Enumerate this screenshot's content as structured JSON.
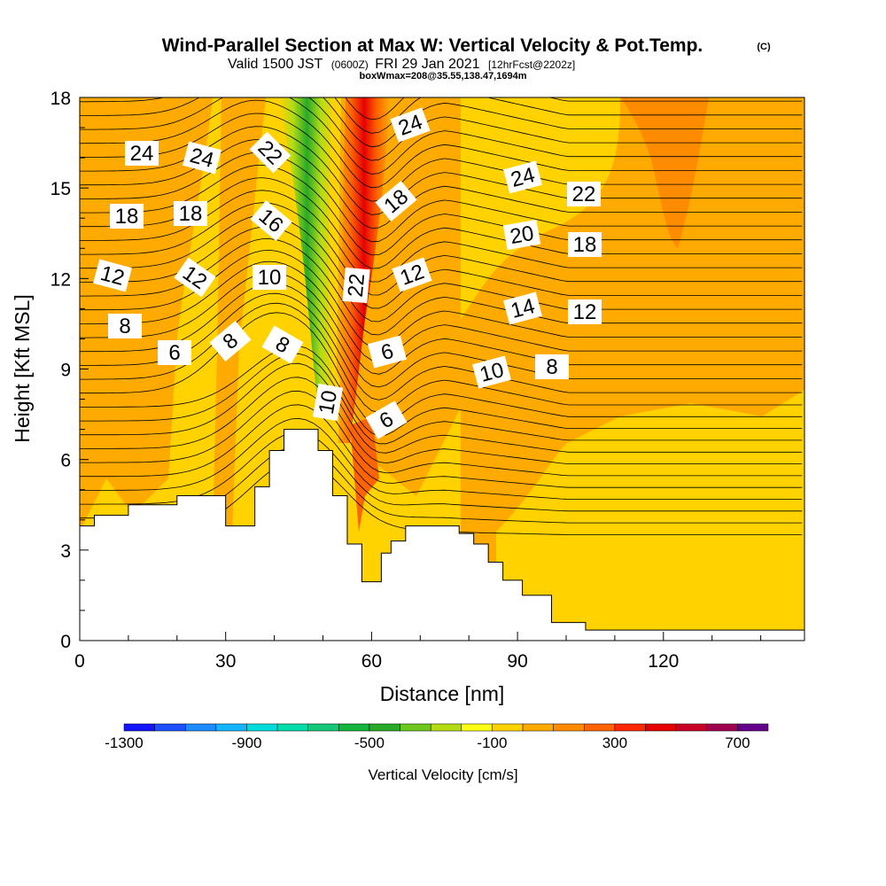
{
  "figure": {
    "title": "Wind-Parallel Section at Max W: Vertical Velocity & Pot.Temp.",
    "title_mark": "(C)",
    "valid_prefix": "Valid 1500 JST",
    "valid_utc": "(0600Z)",
    "valid_date": "FRI 29 Jan 2021",
    "forecast_tag": "[12hrFcst@2202z]",
    "box_info": "boxWmax=208@35.55,138.47,1694m"
  },
  "chart_data": {
    "type": "contour",
    "xlabel": "Distance [nm]",
    "ylabel": "Height [Kft MSL]",
    "xlim": [
      0,
      149
    ],
    "ylim": [
      0,
      18
    ],
    "xticks": [
      0,
      30,
      60,
      90,
      120
    ],
    "yticks": [
      0,
      3,
      6,
      9,
      12,
      15,
      18
    ],
    "colorbar": {
      "label": "Vertical Velocity [cm/s]",
      "tick_labels": [
        "-1300",
        "-900",
        "-500",
        "-100",
        "300",
        "700"
      ],
      "tick_values": [
        -1300,
        -900,
        -500,
        -100,
        300,
        700
      ],
      "levels": [
        -1300,
        -1200,
        -1100,
        -1000,
        -900,
        -800,
        -700,
        -600,
        -500,
        -400,
        -300,
        -200,
        -100,
        0,
        100,
        200,
        300,
        400,
        500,
        600,
        700,
        800
      ],
      "colors": [
        "#1414ff",
        "#1e50ff",
        "#1e8cff",
        "#14b4ff",
        "#00dcdc",
        "#00dcaa",
        "#14c878",
        "#14b43c",
        "#28aa28",
        "#6ec81e",
        "#b4dc14",
        "#ffff14",
        "#ffd200",
        "#ffaa00",
        "#ff8c00",
        "#ff6400",
        "#ff2800",
        "#e60000",
        "#c80028",
        "#a00050",
        "#64008c"
      ]
    },
    "contour_labels": [
      "24",
      "24",
      "22",
      "24",
      "24",
      "22",
      "18",
      "18",
      "16",
      "18",
      "20",
      "18",
      "12",
      "12",
      "10",
      "22",
      "12",
      "14",
      "12",
      "8",
      "8",
      "6",
      "8",
      "10",
      "8",
      "6",
      "10",
      "6"
    ],
    "fields": [
      {
        "name": "Vertical Velocity",
        "units": "cm/s",
        "features": [
          {
            "kind": "updraft",
            "x": 58,
            "top_y": 18,
            "bottom_y": 6.5,
            "peak_range": [
              400,
              600
            ]
          },
          {
            "kind": "downdraft",
            "x": 47,
            "top_y": 18,
            "bottom_y": 7,
            "peak_range": [
              -600,
              -400
            ]
          }
        ]
      },
      {
        "name": "Potential Temperature",
        "units": "C"
      }
    ],
    "terrain_top_kft": [
      [
        0,
        3.8
      ],
      [
        3,
        4.15
      ],
      [
        10,
        4.5
      ],
      [
        20,
        4.8
      ],
      [
        30,
        3.8
      ],
      [
        36,
        5.1
      ],
      [
        39,
        6.3
      ],
      [
        42,
        7.0
      ],
      [
        49,
        6.3
      ],
      [
        52,
        4.8
      ],
      [
        55,
        3.2
      ],
      [
        58,
        1.95
      ],
      [
        62,
        2.9
      ],
      [
        64,
        3.3
      ],
      [
        67,
        3.8
      ],
      [
        78,
        3.55
      ],
      [
        81,
        3.2
      ],
      [
        84,
        2.6
      ],
      [
        87,
        2.0
      ],
      [
        91,
        1.5
      ],
      [
        97,
        0.6
      ],
      [
        104,
        0.35
      ],
      [
        149,
        0.35
      ]
    ]
  }
}
